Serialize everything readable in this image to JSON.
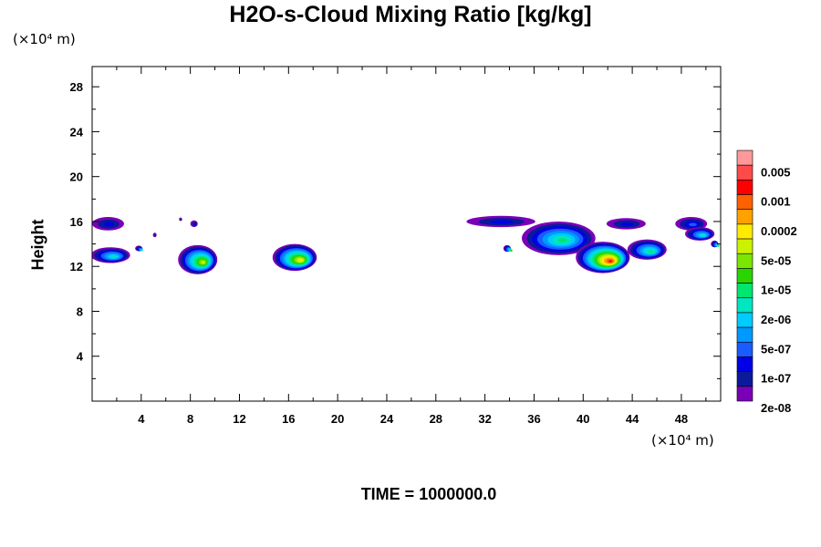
{
  "chart_data": {
    "type": "heatmap",
    "title": "H2O-s-Cloud Mixing Ratio [kg/kg]",
    "ylabel": "Height",
    "xlabel": "",
    "x_unit": "(×10⁴ m)",
    "y_unit": "(×10⁴ m)",
    "footer": "TIME = 1000000.0",
    "xlim": [
      0,
      51.2
    ],
    "ylim": [
      0,
      29.8
    ],
    "x_ticks": [
      4,
      8,
      12,
      16,
      20,
      24,
      28,
      32,
      36,
      40,
      44,
      48
    ],
    "y_ticks": [
      4,
      8,
      12,
      16,
      20,
      24,
      28
    ],
    "colorbar": {
      "labels": [
        "0.005",
        "0.001",
        "0.0002",
        "5e-05",
        "1e-05",
        "2e-06",
        "5e-07",
        "1e-07",
        "2e-08"
      ],
      "colors": [
        "#ff9999",
        "#ff4a4a",
        "#ff0000",
        "#ff6000",
        "#ffa200",
        "#ffea00",
        "#ccf200",
        "#7ce600",
        "#2ad400",
        "#00e66e",
        "#00e6c0",
        "#00ccff",
        "#0099ff",
        "#1a5cff",
        "#0000e6",
        "#0a1a9a",
        "#7a00b8"
      ]
    },
    "cloud_regions": [
      {
        "x": 1.3,
        "y": 15.8,
        "rx": 1.3,
        "ry": 0.6,
        "peak": 2
      },
      {
        "x": 1.5,
        "y": 13.0,
        "rx": 1.6,
        "ry": 0.7,
        "peak": 6
      },
      {
        "x": 8.3,
        "y": 15.8,
        "rx": 0.3,
        "ry": 0.3,
        "peak": 2
      },
      {
        "x": 8.6,
        "y": 12.6,
        "rx": 1.6,
        "ry": 1.3,
        "peak": 10
      },
      {
        "x": 16.5,
        "y": 12.8,
        "rx": 1.8,
        "ry": 1.2,
        "peak": 11
      },
      {
        "x": 33.3,
        "y": 16.0,
        "rx": 2.8,
        "ry": 0.5,
        "peak": 2
      },
      {
        "x": 38.0,
        "y": 14.5,
        "rx": 3.0,
        "ry": 1.5,
        "peak": 7
      },
      {
        "x": 41.6,
        "y": 12.8,
        "rx": 2.2,
        "ry": 1.4,
        "peak": 14
      },
      {
        "x": 43.5,
        "y": 15.8,
        "rx": 1.6,
        "ry": 0.5,
        "peak": 2
      },
      {
        "x": 45.2,
        "y": 13.5,
        "rx": 1.6,
        "ry": 0.9,
        "peak": 7
      },
      {
        "x": 48.8,
        "y": 15.8,
        "rx": 1.3,
        "ry": 0.6,
        "peak": 3
      },
      {
        "x": 49.5,
        "y": 14.9,
        "rx": 1.2,
        "ry": 0.6,
        "peak": 6
      },
      {
        "x": 33.8,
        "y": 13.6,
        "rx": 0.3,
        "ry": 0.3,
        "peak": 8
      },
      {
        "x": 5.1,
        "y": 14.8,
        "rx": 0.15,
        "ry": 0.2,
        "peak": 1
      },
      {
        "x": 7.2,
        "y": 16.2,
        "rx": 0.12,
        "ry": 0.15,
        "peak": 1
      },
      {
        "x": 3.8,
        "y": 13.6,
        "rx": 0.3,
        "ry": 0.25,
        "peak": 6
      },
      {
        "x": 50.7,
        "y": 14.0,
        "rx": 0.3,
        "ry": 0.3,
        "peak": 7
      }
    ]
  }
}
